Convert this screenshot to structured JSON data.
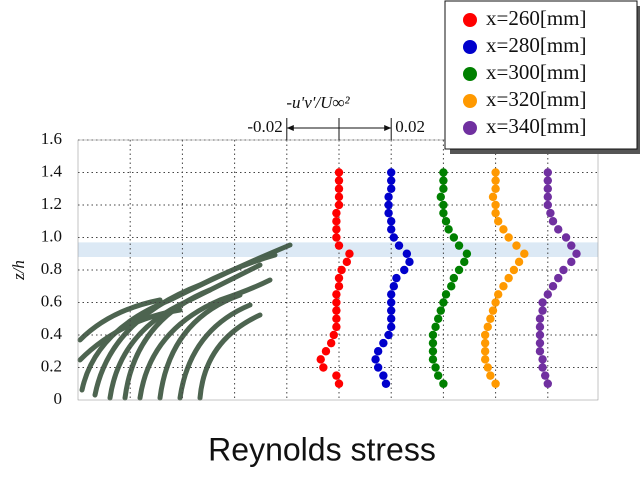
{
  "chart_data": {
    "type": "profile",
    "title": "Reynolds stress",
    "ylabel": "z/h",
    "scale_bar": {
      "label": "-u'v'/U∞²",
      "ticks": [
        -0.02,
        0,
        0.02
      ]
    },
    "ylim": [
      0,
      1.6
    ],
    "yticks": [
      0,
      0.2,
      0.4,
      0.6,
      0.8,
      {
        "value": 1.0,
        "label": "1.0"
      },
      1.2,
      1.4,
      1.6
    ],
    "highlight_band": [
      0.88,
      0.97
    ],
    "grid": true,
    "legend": "upper right",
    "z": [
      0.1,
      0.15,
      0.2,
      0.25,
      0.3,
      0.35,
      0.4,
      0.45,
      0.5,
      0.55,
      0.6,
      0.65,
      0.7,
      0.75,
      0.8,
      0.85,
      0.9,
      0.95,
      1.0,
      1.05,
      1.1,
      1.15,
      1.2,
      1.25,
      1.3,
      1.35,
      1.4
    ],
    "series": [
      {
        "name": "x=260[mm]",
        "color": "#ff0000",
        "values": [
          0,
          -0.001,
          -0.006,
          -0.007,
          -0.005,
          -0.003,
          -0.002,
          -0.001,
          -0.001,
          -0.001,
          -0.001,
          -0.001,
          0,
          0,
          0.001,
          0.003,
          0.004,
          0,
          -0.001,
          -0.001,
          -0.001,
          -0.001,
          0,
          0,
          0,
          0,
          0
        ]
      },
      {
        "name": "x=280[mm]",
        "color": "#0000cc",
        "values": [
          -0.002,
          -0.003,
          -0.005,
          -0.006,
          -0.005,
          -0.003,
          -0.001,
          0,
          0,
          0,
          0,
          0,
          0.001,
          0.002,
          0.005,
          0.007,
          0.006,
          0.003,
          0.001,
          0,
          0,
          -0.001,
          -0.001,
          -0.001,
          0,
          0,
          0
        ]
      },
      {
        "name": "x=300[mm]",
        "color": "#008000",
        "values": [
          0,
          -0.002,
          -0.003,
          -0.004,
          -0.004,
          -0.004,
          -0.004,
          -0.003,
          -0.002,
          -0.001,
          0,
          0.001,
          0.003,
          0.004,
          0.006,
          0.008,
          0.009,
          0.006,
          0.004,
          0.002,
          0.001,
          0,
          0,
          -0.001,
          0,
          0,
          0
        ]
      },
      {
        "name": "x=320[mm]",
        "color": "#ff9900",
        "values": [
          0,
          -0.002,
          -0.003,
          -0.004,
          -0.004,
          -0.004,
          -0.004,
          -0.003,
          -0.002,
          -0.001,
          0,
          0.001,
          0.003,
          0.005,
          0.007,
          0.009,
          0.011,
          0.008,
          0.005,
          0.003,
          0.001,
          0,
          0,
          -0.001,
          0,
          0,
          0
        ]
      },
      {
        "name": "x=340[mm]",
        "color": "#7030a0",
        "values": [
          0,
          -0.001,
          -0.002,
          -0.002,
          -0.003,
          -0.003,
          -0.003,
          -0.003,
          -0.003,
          -0.002,
          -0.002,
          0,
          0.002,
          0.004,
          0.006,
          0.009,
          0.011,
          0.009,
          0.007,
          0.004,
          0.002,
          0.001,
          0,
          0,
          0,
          0,
          0
        ]
      }
    ]
  }
}
